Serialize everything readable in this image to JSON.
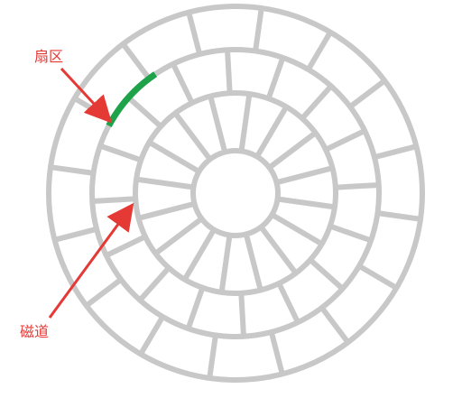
{
  "labels": {
    "sector": "扇区",
    "track": "磁道"
  },
  "colors": {
    "disk_lines": "#c8c8c8",
    "highlight_sector": "#1fa34a",
    "annotation": "#e53935",
    "background": "#ffffff"
  },
  "disk": {
    "tracks": 4,
    "sectors": 16
  }
}
